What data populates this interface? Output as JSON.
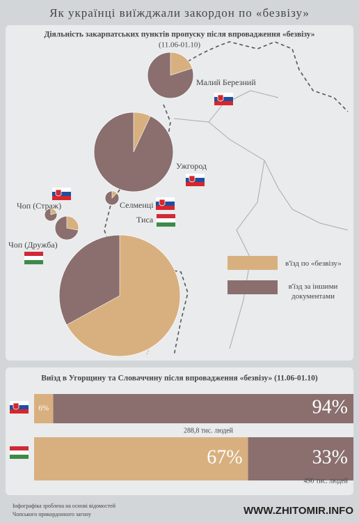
{
  "title": "Як українці виїжджали закордон по «безвізу»",
  "colors": {
    "bezviz": "#d8b07f",
    "other": "#8a6f6e"
  },
  "map": {
    "subtitle": "Діяльність закарпатських пунктів пропуску після впровадження «безвізу»",
    "period": "(11.06-01.10)",
    "points": [
      {
        "name": "Малий Березний",
        "bezviz": 20
      },
      {
        "name": "Ужгород",
        "bezviz": 7
      },
      {
        "name": "Селменці",
        "bezviz": 12
      },
      {
        "name": "Чоп (Страж)",
        "bezviz": 20
      },
      {
        "name": "Чоп (Дружба)",
        "bezviz": 28
      },
      {
        "name": "Тиса",
        "bezviz": 67
      }
    ],
    "legend": [
      "в'їзд по «безвізу»",
      "в'їзд за іншими документами"
    ]
  },
  "bars": {
    "title": "Виїзд в Угорщину та Словаччину після впровадження «безвізу» (11.06-01.10)",
    "rows": [
      {
        "values": [
          6,
          94
        ],
        "value_labels": [
          "6%",
          "94%"
        ],
        "total": "288,8 тис. людей"
      },
      {
        "values": [
          67,
          33
        ],
        "value_labels": [
          "67%",
          "33%"
        ],
        "total": "490 тис. людей"
      }
    ]
  },
  "footer": [
    "Інфографіка зроблена на основі відомостей",
    "Чопського прикордонного загону"
  ],
  "watermark": "WWW.ZHITOMIR.INFO"
}
